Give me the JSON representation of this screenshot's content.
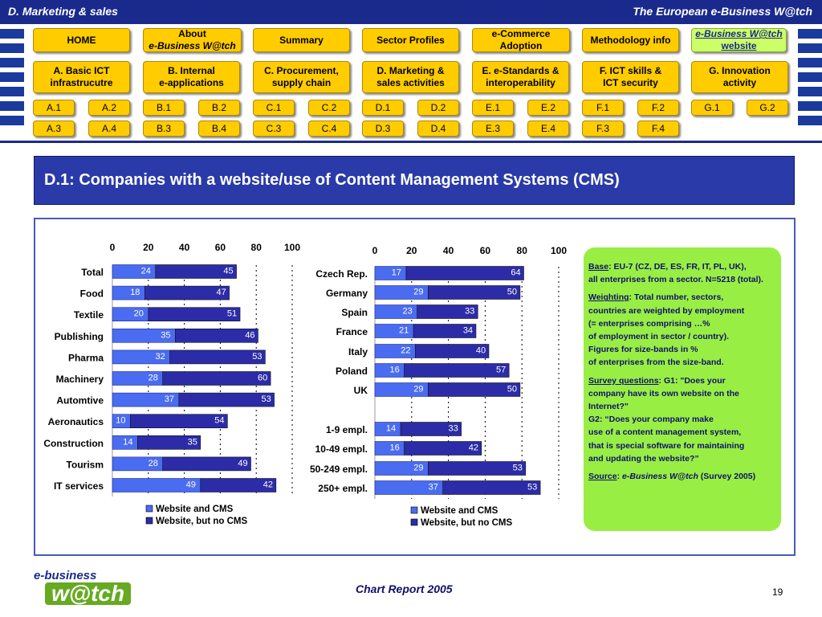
{
  "header": {
    "section": "D. Marketing  & sales",
    "brand": "The European e-Business W@tch"
  },
  "nav_row1": [
    {
      "label": "HOME"
    },
    {
      "label": "About",
      "label2": "e-Business W@tch"
    },
    {
      "label": "Summary"
    },
    {
      "label": "Sector Profiles"
    },
    {
      "label": "e-Commerce",
      "label2": "Adoption"
    },
    {
      "label": "Methodology info"
    },
    {
      "label": "e-Business W@tch",
      "label2": "website"
    }
  ],
  "nav_row2": [
    {
      "label": "A. Basic ICT",
      "label2": "infrastrucutre"
    },
    {
      "label": "B. Internal",
      "label2": "e-applications"
    },
    {
      "label": "C. Procurement,",
      "label2": "supply chain"
    },
    {
      "label": "D. Marketing &",
      "label2": "sales activities"
    },
    {
      "label": "E. e-Standards &",
      "label2": "interoperability"
    },
    {
      "label": "F. ICT skills &",
      "label2": "ICT security"
    },
    {
      "label": "G. Innovation",
      "label2": "activity"
    }
  ],
  "nav_row3": [
    "A.1",
    "A.2",
    "B.1",
    "B.2",
    "C.1",
    "C.2",
    "D.1",
    "D.2",
    "E.1",
    "E.2",
    "F.1",
    "F.2",
    "G.1",
    "G.2"
  ],
  "nav_row4": [
    "A.3",
    "A.4",
    "B.3",
    "B.4",
    "C.3",
    "C.4",
    "D.3",
    "D.4",
    "E.3",
    "E.4",
    "F.3",
    "F.4"
  ],
  "page_title": "D.1: Companies with a website/use of Content Management Systems (CMS)",
  "colors": {
    "series_cms": "#4a6cf0",
    "series_no_cms": "#2c2ca8",
    "info_bg": "#99ee44",
    "title_bg": "#2a3aa8"
  },
  "chart_data": [
    {
      "type": "bar",
      "orientation": "horizontal",
      "stacked": true,
      "categories": [
        "Total",
        "Food",
        "Textile",
        "Publishing",
        "Pharma",
        "Machinery",
        "Automtive",
        "Aeronautics",
        "Construction",
        "Tourism",
        "IT services"
      ],
      "series": [
        {
          "name": "Website and CMS",
          "values": [
            24,
            18,
            20,
            35,
            32,
            28,
            37,
            10,
            14,
            28,
            49
          ]
        },
        {
          "name": "Website, but no CMS",
          "values": [
            45,
            47,
            51,
            46,
            53,
            60,
            53,
            54,
            35,
            49,
            42
          ]
        }
      ],
      "xlim": [
        0,
        100
      ],
      "xticks": [
        0,
        20,
        40,
        60,
        80,
        100
      ],
      "grid": true,
      "legend": "bottom"
    },
    {
      "type": "bar",
      "orientation": "horizontal",
      "stacked": true,
      "categories": [
        "Czech Rep.",
        "Germany",
        "Spain",
        "France",
        "Italy",
        "Poland",
        "UK",
        "1-9 empl.",
        "10-49 empl.",
        "50-249 empl.",
        "250+ empl."
      ],
      "series": [
        {
          "name": "Website and CMS",
          "values": [
            17,
            29,
            23,
            21,
            22,
            16,
            29,
            14,
            16,
            29,
            37
          ]
        },
        {
          "name": "Website, but no CMS",
          "values": [
            64,
            50,
            33,
            34,
            40,
            57,
            50,
            33,
            42,
            53,
            53
          ]
        }
      ],
      "xlim": [
        0,
        100
      ],
      "xticks": [
        0,
        20,
        40,
        60,
        80,
        100
      ],
      "grid": true,
      "legend": "bottom"
    }
  ],
  "info": {
    "base_label": "Base",
    "base_text": ": EU-7 (CZ, DE, ES, FR, IT, PL, UK),",
    "base_text2": "all enterprises from a sector. N=5218 (total).",
    "weighting_label": "Weighting",
    "weighting_text": ": Total number, sectors,",
    "weighting_lines": [
      "countries are weighted by employment",
      "(= enterprises comprising …%",
      "of employment in sector / country).",
      "Figures for size-bands in %",
      "of enterprises from the size-band."
    ],
    "survey_label": "Survey questions",
    "survey_text": ": G1: \"Does your",
    "survey_lines": [
      "company have its own website on the",
      "Internet?\"",
      "G2: “Does your company make",
      "use of a content management system,",
      "that is special software for maintaining",
      "and updating the website?”"
    ],
    "source_label": "Source",
    "source_italic": "e-Business W@tch",
    "source_text": " (Survey 2005)"
  },
  "footer": {
    "logo_top": "e-business",
    "logo_main": "w@tch",
    "report": "Chart Report 2005",
    "page": "19"
  }
}
